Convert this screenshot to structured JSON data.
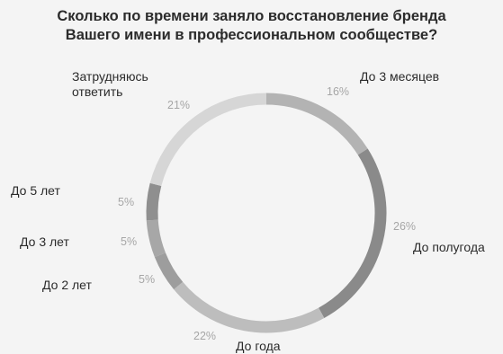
{
  "chart_data": {
    "type": "pie",
    "title": [
      "Сколько по времени заняло восстановление бренда",
      "Вашего имени в профессиональном сообществе?"
    ],
    "categories": [
      "До 3 месяцев",
      "До полугода",
      "До года",
      "До 2 лет",
      "До 3 лет",
      "До 5 лет",
      "Затрудняюсь ответить"
    ],
    "values": [
      16,
      26,
      22,
      5,
      5,
      5,
      21
    ],
    "value_labels": [
      "16%",
      "26%",
      "22%",
      "5%",
      "5%",
      "5%",
      "21%"
    ],
    "colors": [
      "#b3b3b3",
      "#8a8a8a",
      "#bdbdbd",
      "#9d9d9d",
      "#a7a7a7",
      "#8f8f8f",
      "#d6d6d6"
    ],
    "style": "donut",
    "legend": "labels around ring"
  }
}
